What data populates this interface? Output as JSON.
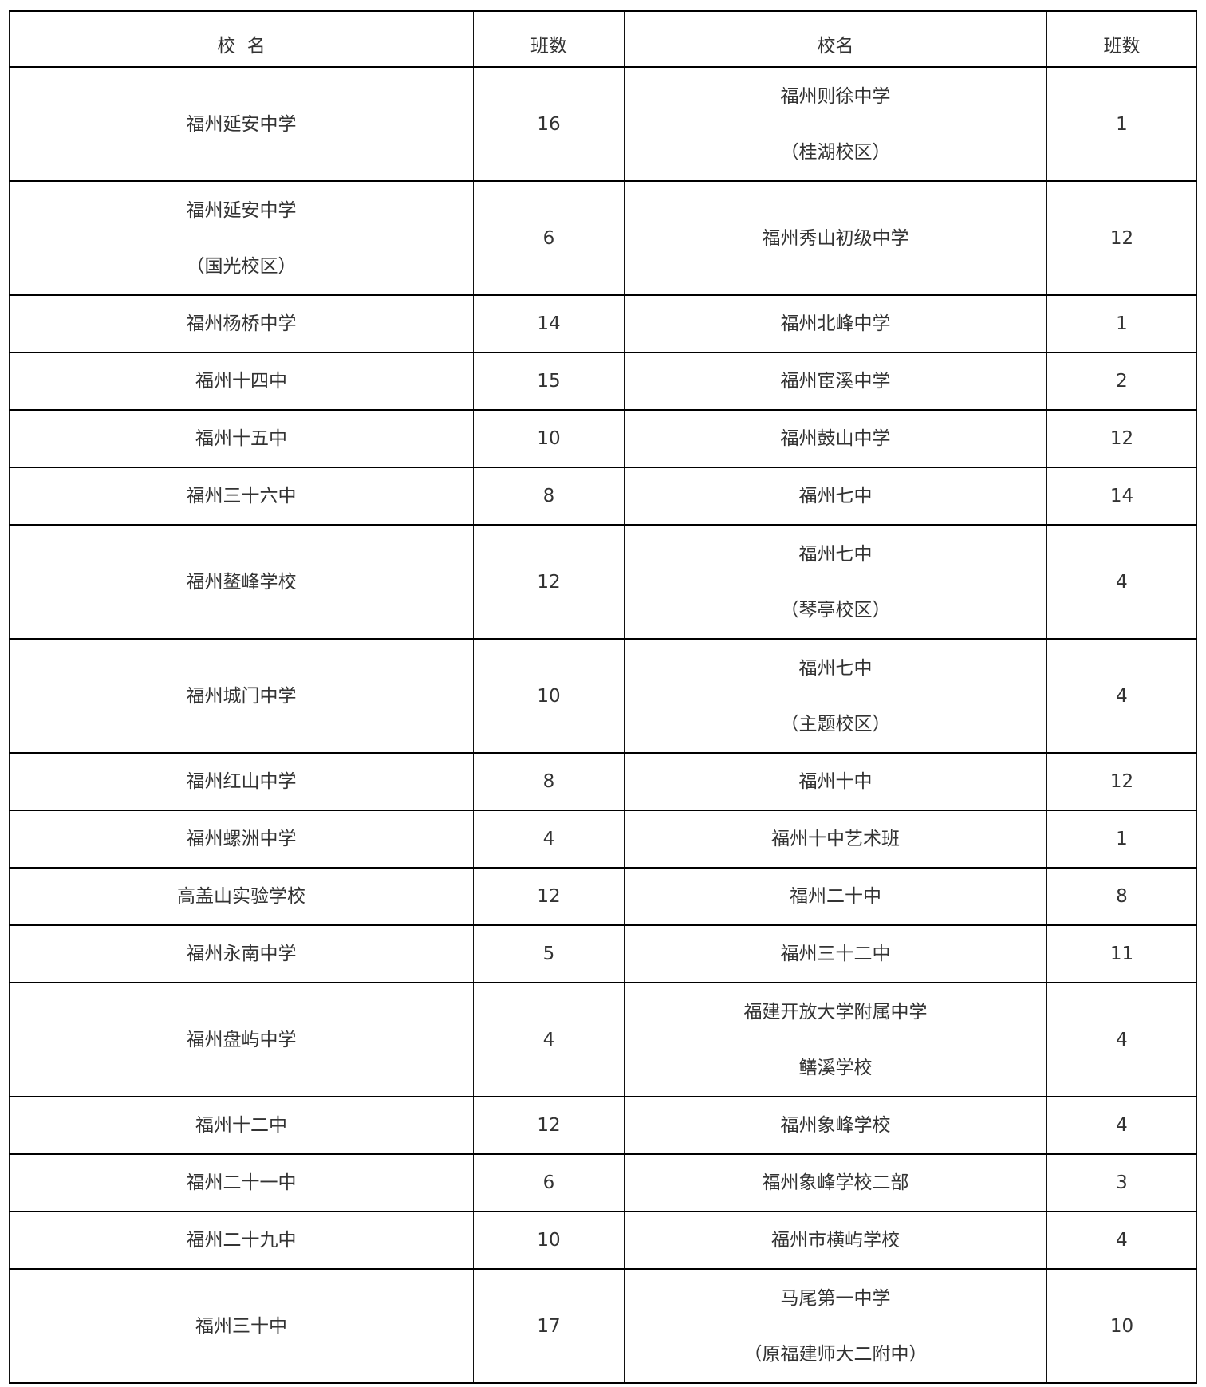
{
  "headers": [
    "校  名",
    "班数",
    "校名",
    "班数"
  ],
  "rows": [
    {
      "a": [
        "福州延安中学"
      ],
      "an": "16",
      "b": [
        "福州则徐中学",
        "（桂湖校区）"
      ],
      "bn": "1"
    },
    {
      "a": [
        "福州延安中学",
        "（国光校区）"
      ],
      "an": "6",
      "b": [
        "福州秀山初级中学"
      ],
      "bn": "12"
    },
    {
      "a": [
        "福州杨桥中学"
      ],
      "an": "14",
      "b": [
        "福州北峰中学"
      ],
      "bn": "1"
    },
    {
      "a": [
        "福州十四中"
      ],
      "an": "15",
      "b": [
        "福州宦溪中学"
      ],
      "bn": "2"
    },
    {
      "a": [
        "福州十五中"
      ],
      "an": "10",
      "b": [
        "福州鼓山中学"
      ],
      "bn": "12"
    },
    {
      "a": [
        "福州三十六中"
      ],
      "an": "8",
      "b": [
        "福州七中"
      ],
      "bn": "14"
    },
    {
      "a": [
        "福州鳌峰学校"
      ],
      "an": "12",
      "b": [
        "福州七中",
        "（琴亭校区）"
      ],
      "bn": "4"
    },
    {
      "a": [
        "福州城门中学"
      ],
      "an": "10",
      "b": [
        "福州七中",
        "（主题校区）"
      ],
      "bn": "4"
    },
    {
      "a": [
        "福州红山中学"
      ],
      "an": "8",
      "b": [
        "福州十中"
      ],
      "bn": "12"
    },
    {
      "a": [
        "福州螺洲中学"
      ],
      "an": "4",
      "b": [
        "福州十中艺术班"
      ],
      "bn": "1"
    },
    {
      "a": [
        "高盖山实验学校"
      ],
      "an": "12",
      "b": [
        "福州二十中"
      ],
      "bn": "8"
    },
    {
      "a": [
        "福州永南中学"
      ],
      "an": "5",
      "b": [
        "福州三十二中"
      ],
      "bn": "11"
    },
    {
      "a": [
        "福州盘屿中学"
      ],
      "an": "4",
      "b": [
        "福建开放大学附属中学",
        "鳝溪学校"
      ],
      "bn": "4"
    },
    {
      "a": [
        "福州十二中"
      ],
      "an": "12",
      "b": [
        "福州象峰学校"
      ],
      "bn": "4"
    },
    {
      "a": [
        "福州二十一中"
      ],
      "an": "6",
      "b": [
        "福州象峰学校二部"
      ],
      "bn": "3"
    },
    {
      "a": [
        "福州二十九中"
      ],
      "an": "10",
      "b": [
        "福州市横屿学校"
      ],
      "bn": "4"
    },
    {
      "a": [
        "福州三十中"
      ],
      "an": "17",
      "b": [
        "马尾第一中学",
        "（原福建师大二附中）"
      ],
      "bn": "10"
    }
  ]
}
